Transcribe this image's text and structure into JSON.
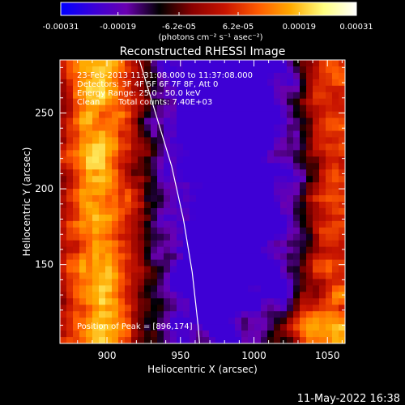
{
  "chart_data": {
    "type": "heatmap",
    "title": "Reconstructed RHESSI Image",
    "xlabel": "Heliocentric X (arcsec)",
    "ylabel": "Heliocentric Y (arcsec)",
    "xlim": [
      868,
      1062
    ],
    "ylim": [
      98,
      285
    ],
    "x_ticks": [
      "900",
      "950",
      "1000",
      "1050"
    ],
    "x_tick_values": [
      900,
      950,
      1000,
      1050
    ],
    "y_ticks": [
      "150",
      "200",
      "250"
    ],
    "y_tick_values": [
      150,
      200,
      250
    ],
    "colorbar": {
      "min": -0.00031,
      "max": 0.00031,
      "tick_labels": [
        "-0.00031",
        "-0.00019",
        "-6.2e-05",
        "6.2e-05",
        "0.00019",
        "0.00031"
      ],
      "tick_values": [
        -0.00031,
        -0.00019,
        -6.2e-05,
        6.2e-05,
        0.00019,
        0.00031
      ],
      "unit_label": "(photons cm⁻² s⁻¹ asec⁻²)",
      "colormap": [
        "#0000ff",
        "#3a00d8",
        "#6a00b0",
        "#000000",
        "#8a0000",
        "#c81400",
        "#ff5a00",
        "#ffaa00",
        "#ffff80",
        "#ffffff"
      ]
    },
    "annotations": [
      "23-Feb-2013 11:31:08.000 to 11:37:08.000",
      "Detectors: 3F 4F 5F 6F 7F 8F, Att 0",
      "Energy Range: 25.0 - 50.0 keV",
      "Clean",
      "Total counts: 7.40E+03"
    ],
    "peak_label": "Position of Peak = [896,174]",
    "peak": [
      896,
      174
    ],
    "limb_curve": [
      [
        922,
        285
      ],
      [
        933,
        250
      ],
      [
        944,
        215
      ],
      [
        952,
        180
      ],
      [
        958,
        145
      ],
      [
        962,
        110
      ],
      [
        963,
        98
      ]
    ]
  },
  "timestamp": "11-May-2022 16:38"
}
